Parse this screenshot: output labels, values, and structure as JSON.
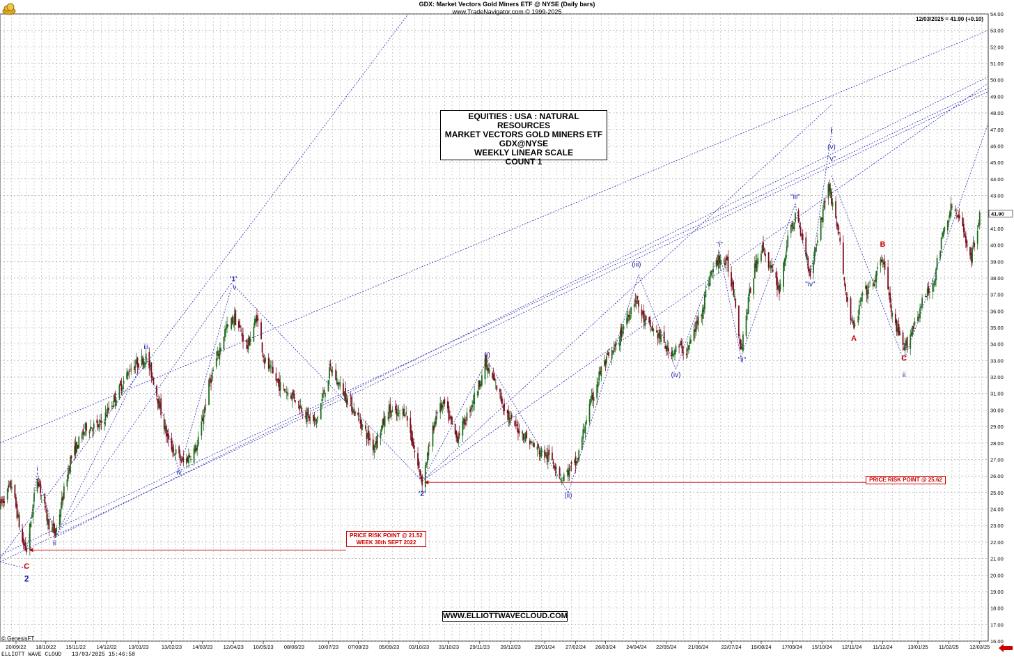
{
  "header": {
    "title": "GDX: Market Vectors Gold Miners ETF @ NYSE (Daily bars)",
    "source": "www.TradeNavigator.com © 1999-2025",
    "last_quote": "12/03/2025 = 41.90 (+0.10)"
  },
  "info_box": {
    "line1": "EQUITIES : USA : NATURAL RESOURCES",
    "line2": "MARKET VECTORS GOLD MINERS ETF",
    "line3": "GDX@NYSE",
    "line4": "WEEKLY LINEAR SCALE",
    "line5": "COUNT 1"
  },
  "website": "WWW.ELLIOTTWAVECLOUD.COM",
  "risk_points": {
    "first_line1": "PRICE RISK POINT @ 21.52",
    "first_line2": "WEEK 30th SEPT 2022",
    "second": "PRICE RISK POINT @ 25.62"
  },
  "footer": {
    "text": "ELLIOTT WAVE CLOUD   13/03/2025 15:46:58",
    "genesis": "© GenesisFT"
  },
  "icons": {
    "logo": "cloud-logo-icon",
    "arrow": "left-arrow-icon"
  },
  "colors": {
    "blue": "#1a1aa8",
    "red": "#cc0000",
    "candle_up": "#1f6b1f",
    "candle_down": "#7a0f1f",
    "grid": "#9a9a9a"
  },
  "chart_data": {
    "type": "candlestick",
    "ylim": [
      16,
      54
    ],
    "yticks": [
      "16.00",
      "17.00",
      "18.00",
      "19.00",
      "20.00",
      "21.00",
      "22.00",
      "23.00",
      "24.00",
      "25.00",
      "26.00",
      "27.00",
      "28.00",
      "29.00",
      "30.00",
      "31.00",
      "32.00",
      "33.00",
      "34.00",
      "35.00",
      "36.00",
      "37.00",
      "38.00",
      "39.00",
      "40.00",
      "41.00",
      "42.00",
      "43.00",
      "44.00",
      "45.00",
      "46.00",
      "47.00",
      "48.00",
      "49.00",
      "50.00",
      "51.00",
      "52.00",
      "53.00",
      "54.00"
    ],
    "last_price_label": "41.90",
    "last_price": 41.9,
    "xticks": [
      "20/09/22",
      "18/10/22",
      "15/11/22",
      "14/12/22",
      "13/01/23",
      "13/02/23",
      "14/03/23",
      "12/04/23",
      "10/05/23",
      "08/06/23",
      "10/07/23",
      "07/08/23",
      "05/09/23",
      "03/10/23",
      "31/10/23",
      "29/11/23",
      "28/12/23",
      "29/01/24",
      "27/02/24",
      "26/03/24",
      "24/04/24",
      "22/05/24",
      "21/06/24",
      "22/07/24",
      "19/08/24",
      "17/09/24",
      "15/10/24",
      "12/11/24",
      "11/12/24",
      "13/01/25",
      "11/02/25",
      "12/03/25"
    ],
    "xlim": [
      "2022-09-05",
      "2025-03-20"
    ],
    "path_points": [
      [
        "2022-09-05",
        24.2
      ],
      [
        "2022-09-16",
        25.5
      ],
      [
        "2022-09-26",
        22.0
      ],
      [
        "2022-09-30",
        21.5
      ],
      [
        "2022-10-10",
        26.0
      ],
      [
        "2022-10-20",
        23.2
      ],
      [
        "2022-10-27",
        22.5
      ],
      [
        "2022-11-10",
        27.0
      ],
      [
        "2022-11-25",
        29.0
      ],
      [
        "2022-12-07",
        29.0
      ],
      [
        "2022-12-20",
        30.5
      ],
      [
        "2023-01-05",
        32.5
      ],
      [
        "2023-01-20",
        33.2
      ],
      [
        "2023-01-27",
        31.8
      ],
      [
        "2023-02-10",
        28.0
      ],
      [
        "2023-02-24",
        26.8
      ],
      [
        "2023-03-09",
        27.8
      ],
      [
        "2023-03-20",
        31.5
      ],
      [
        "2023-04-04",
        34.8
      ],
      [
        "2023-04-13",
        35.6
      ],
      [
        "2023-04-25",
        33.8
      ],
      [
        "2023-05-04",
        35.7
      ],
      [
        "2023-05-11",
        33.0
      ],
      [
        "2023-05-25",
        31.5
      ],
      [
        "2023-06-08",
        30.8
      ],
      [
        "2023-06-20",
        29.6
      ],
      [
        "2023-06-28",
        29.2
      ],
      [
        "2023-07-12",
        32.5
      ],
      [
        "2023-07-25",
        31.0
      ],
      [
        "2023-08-03",
        30.0
      ],
      [
        "2023-08-21",
        27.8
      ],
      [
        "2023-09-05",
        30.0
      ],
      [
        "2023-09-12",
        29.7
      ],
      [
        "2023-09-20",
        30.0
      ],
      [
        "2023-10-02",
        26.6
      ],
      [
        "2023-10-06",
        25.7
      ],
      [
        "2023-10-20",
        30.0
      ],
      [
        "2023-10-27",
        30.3
      ],
      [
        "2023-11-07",
        28.3
      ],
      [
        "2023-11-15",
        29.3
      ],
      [
        "2023-11-28",
        31.5
      ],
      [
        "2023-12-04",
        32.8
      ],
      [
        "2023-12-14",
        31.5
      ],
      [
        "2023-12-27",
        29.4
      ],
      [
        "2024-01-08",
        28.6
      ],
      [
        "2024-01-22",
        27.6
      ],
      [
        "2024-02-05",
        27.0
      ],
      [
        "2024-02-14",
        25.9
      ],
      [
        "2024-02-28",
        26.8
      ],
      [
        "2024-03-08",
        29.5
      ],
      [
        "2024-03-22",
        32.5
      ],
      [
        "2024-04-05",
        33.8
      ],
      [
        "2024-04-16",
        35.8
      ],
      [
        "2024-04-23",
        36.8
      ],
      [
        "2024-05-02",
        35.3
      ],
      [
        "2024-05-15",
        34.5
      ],
      [
        "2024-05-24",
        33.5
      ],
      [
        "2024-06-04",
        33.8
      ],
      [
        "2024-06-10",
        33.5
      ],
      [
        "2024-06-24",
        36.0
      ],
      [
        "2024-07-02",
        38.2
      ],
      [
        "2024-07-11",
        39.2
      ],
      [
        "2024-07-18",
        38.8
      ],
      [
        "2024-07-25",
        37.0
      ],
      [
        "2024-07-31",
        33.7
      ],
      [
        "2024-08-08",
        37.0
      ],
      [
        "2024-08-16",
        39.5
      ],
      [
        "2024-08-21",
        39.8
      ],
      [
        "2024-08-30",
        38.2
      ],
      [
        "2024-09-05",
        37.3
      ],
      [
        "2024-09-12",
        40.0
      ],
      [
        "2024-09-20",
        41.8
      ],
      [
        "2024-09-30",
        39.6
      ],
      [
        "2024-10-04",
        38.2
      ],
      [
        "2024-10-14",
        41.5
      ],
      [
        "2024-10-21",
        43.7
      ],
      [
        "2024-10-30",
        41.0
      ],
      [
        "2024-11-07",
        36.8
      ],
      [
        "2024-11-14",
        34.8
      ],
      [
        "2024-11-22",
        37.0
      ],
      [
        "2024-12-02",
        37.6
      ],
      [
        "2024-12-11",
        39.3
      ],
      [
        "2024-12-20",
        35.6
      ],
      [
        "2024-12-31",
        33.6
      ],
      [
        "2025-01-08",
        35.0
      ],
      [
        "2025-01-17",
        36.5
      ],
      [
        "2025-01-27",
        37.6
      ],
      [
        "2025-02-05",
        40.5
      ],
      [
        "2025-02-14",
        42.4
      ],
      [
        "2025-02-24",
        41.0
      ],
      [
        "2025-03-04",
        39.2
      ],
      [
        "2025-03-12",
        41.9
      ]
    ]
  }
}
